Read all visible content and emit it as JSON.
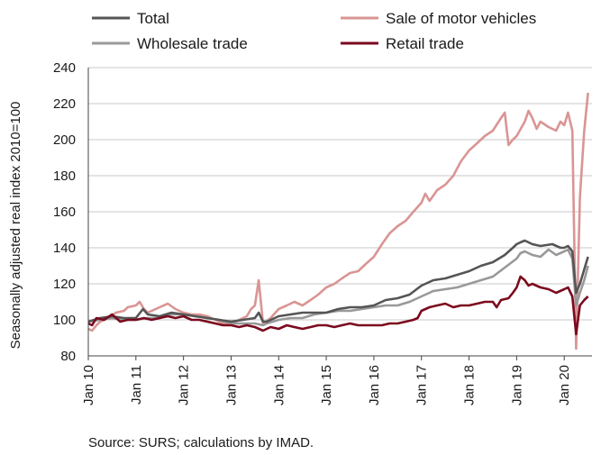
{
  "chart_data": {
    "type": "line",
    "ylabel": "Seasonally adjusted real index 2010=100",
    "ylim": [
      80,
      240
    ],
    "yticks": [
      80,
      100,
      120,
      140,
      160,
      180,
      200,
      220,
      240
    ],
    "xlim": [
      2010.0,
      2020.583
    ],
    "xticks": [
      {
        "label": "Jan 10",
        "year": 2010
      },
      {
        "label": "Jan 11",
        "year": 2011
      },
      {
        "label": "Jan 12",
        "year": 2012
      },
      {
        "label": "Jan 13",
        "year": 2013
      },
      {
        "label": "Jan 14",
        "year": 2014
      },
      {
        "label": "Jan 15",
        "year": 2015
      },
      {
        "label": "Jan 16",
        "year": 2016
      },
      {
        "label": "Jan 17",
        "year": 2017
      },
      {
        "label": "Jan 18",
        "year": 2018
      },
      {
        "label": "Jan 19",
        "year": 2019
      },
      {
        "label": "Jan 20",
        "year": 2020
      }
    ],
    "grid": true,
    "legend_position": "top",
    "series": [
      {
        "name": "Total",
        "color": "#555555",
        "points": [
          [
            2010.0,
            99
          ],
          [
            2010.25,
            101
          ],
          [
            2010.5,
            102
          ],
          [
            2010.75,
            101
          ],
          [
            2011.0,
            101
          ],
          [
            2011.15,
            106
          ],
          [
            2011.25,
            103
          ],
          [
            2011.5,
            102
          ],
          [
            2011.75,
            104
          ],
          [
            2012.0,
            103
          ],
          [
            2012.25,
            102
          ],
          [
            2012.5,
            101
          ],
          [
            2012.75,
            100
          ],
          [
            2013.0,
            99
          ],
          [
            2013.25,
            100
          ],
          [
            2013.5,
            101
          ],
          [
            2013.58,
            104
          ],
          [
            2013.67,
            99
          ],
          [
            2013.75,
            99
          ],
          [
            2014.0,
            102
          ],
          [
            2014.25,
            103
          ],
          [
            2014.5,
            104
          ],
          [
            2014.75,
            104
          ],
          [
            2015.0,
            104
          ],
          [
            2015.25,
            106
          ],
          [
            2015.5,
            107
          ],
          [
            2015.75,
            107
          ],
          [
            2016.0,
            108
          ],
          [
            2016.25,
            111
          ],
          [
            2016.5,
            112
          ],
          [
            2016.75,
            114
          ],
          [
            2017.0,
            119
          ],
          [
            2017.25,
            122
          ],
          [
            2017.5,
            123
          ],
          [
            2017.75,
            125
          ],
          [
            2018.0,
            127
          ],
          [
            2018.25,
            130
          ],
          [
            2018.5,
            132
          ],
          [
            2018.75,
            136
          ],
          [
            2018.92,
            140
          ],
          [
            2019.0,
            142
          ],
          [
            2019.08,
            143
          ],
          [
            2019.17,
            144
          ],
          [
            2019.33,
            142
          ],
          [
            2019.5,
            141
          ],
          [
            2019.75,
            142
          ],
          [
            2019.92,
            140
          ],
          [
            2020.0,
            140
          ],
          [
            2020.08,
            141
          ],
          [
            2020.17,
            138
          ],
          [
            2020.25,
            115
          ],
          [
            2020.33,
            120
          ],
          [
            2020.42,
            128
          ],
          [
            2020.5,
            135
          ]
        ]
      },
      {
        "name": "Sale of motor vehicles",
        "color": "#d99594",
        "points": [
          [
            2010.0,
            95
          ],
          [
            2010.08,
            94
          ],
          [
            2010.17,
            97
          ],
          [
            2010.25,
            99
          ],
          [
            2010.42,
            101
          ],
          [
            2010.58,
            104
          ],
          [
            2010.75,
            105
          ],
          [
            2010.83,
            107
          ],
          [
            2011.0,
            108
          ],
          [
            2011.08,
            110
          ],
          [
            2011.17,
            106
          ],
          [
            2011.25,
            104
          ],
          [
            2011.33,
            105
          ],
          [
            2011.5,
            107
          ],
          [
            2011.67,
            109
          ],
          [
            2011.83,
            106
          ],
          [
            2012.0,
            104
          ],
          [
            2012.17,
            103
          ],
          [
            2012.33,
            103
          ],
          [
            2012.5,
            102
          ],
          [
            2012.67,
            100
          ],
          [
            2012.83,
            98
          ],
          [
            2013.0,
            98
          ],
          [
            2013.17,
            100
          ],
          [
            2013.33,
            102
          ],
          [
            2013.42,
            106
          ],
          [
            2013.5,
            108
          ],
          [
            2013.58,
            122
          ],
          [
            2013.67,
            98
          ],
          [
            2013.83,
            101
          ],
          [
            2014.0,
            106
          ],
          [
            2014.17,
            108
          ],
          [
            2014.33,
            110
          ],
          [
            2014.5,
            108
          ],
          [
            2014.67,
            111
          ],
          [
            2014.83,
            114
          ],
          [
            2015.0,
            118
          ],
          [
            2015.17,
            120
          ],
          [
            2015.33,
            123
          ],
          [
            2015.5,
            126
          ],
          [
            2015.67,
            127
          ],
          [
            2015.83,
            131
          ],
          [
            2016.0,
            135
          ],
          [
            2016.17,
            142
          ],
          [
            2016.33,
            148
          ],
          [
            2016.5,
            152
          ],
          [
            2016.67,
            155
          ],
          [
            2016.83,
            160
          ],
          [
            2017.0,
            165
          ],
          [
            2017.08,
            170
          ],
          [
            2017.17,
            166
          ],
          [
            2017.33,
            172
          ],
          [
            2017.5,
            175
          ],
          [
            2017.67,
            180
          ],
          [
            2017.83,
            188
          ],
          [
            2018.0,
            194
          ],
          [
            2018.17,
            198
          ],
          [
            2018.33,
            202
          ],
          [
            2018.5,
            205
          ],
          [
            2018.67,
            212
          ],
          [
            2018.75,
            215
          ],
          [
            2018.83,
            197
          ],
          [
            2018.92,
            200
          ],
          [
            2019.0,
            202
          ],
          [
            2019.17,
            210
          ],
          [
            2019.25,
            216
          ],
          [
            2019.33,
            212
          ],
          [
            2019.42,
            206
          ],
          [
            2019.5,
            210
          ],
          [
            2019.67,
            207
          ],
          [
            2019.83,
            205
          ],
          [
            2019.92,
            210
          ],
          [
            2020.0,
            208
          ],
          [
            2020.08,
            215
          ],
          [
            2020.17,
            205
          ],
          [
            2020.25,
            84
          ],
          [
            2020.33,
            168
          ],
          [
            2020.42,
            205
          ],
          [
            2020.5,
            226
          ]
        ]
      },
      {
        "name": "Wholesale trade",
        "color": "#999999",
        "points": [
          [
            2010.0,
            99
          ],
          [
            2010.25,
            100
          ],
          [
            2010.5,
            101
          ],
          [
            2010.75,
            100
          ],
          [
            2011.0,
            100
          ],
          [
            2011.25,
            101
          ],
          [
            2011.5,
            101
          ],
          [
            2011.75,
            103
          ],
          [
            2012.0,
            103
          ],
          [
            2012.25,
            102
          ],
          [
            2012.5,
            101
          ],
          [
            2012.75,
            100
          ],
          [
            2013.0,
            98
          ],
          [
            2013.25,
            98
          ],
          [
            2013.5,
            98
          ],
          [
            2013.67,
            97
          ],
          [
            2013.75,
            98
          ],
          [
            2014.0,
            100
          ],
          [
            2014.25,
            101
          ],
          [
            2014.5,
            101
          ],
          [
            2014.75,
            103
          ],
          [
            2015.0,
            104
          ],
          [
            2015.25,
            105
          ],
          [
            2015.5,
            105
          ],
          [
            2015.75,
            106
          ],
          [
            2016.0,
            107
          ],
          [
            2016.25,
            108
          ],
          [
            2016.5,
            108
          ],
          [
            2016.75,
            110
          ],
          [
            2017.0,
            113
          ],
          [
            2017.25,
            116
          ],
          [
            2017.5,
            117
          ],
          [
            2017.75,
            118
          ],
          [
            2018.0,
            120
          ],
          [
            2018.25,
            122
          ],
          [
            2018.5,
            124
          ],
          [
            2018.75,
            129
          ],
          [
            2019.0,
            134
          ],
          [
            2019.08,
            137
          ],
          [
            2019.17,
            138
          ],
          [
            2019.33,
            136
          ],
          [
            2019.5,
            135
          ],
          [
            2019.67,
            139
          ],
          [
            2019.83,
            136
          ],
          [
            2020.0,
            138
          ],
          [
            2020.08,
            139
          ],
          [
            2020.17,
            134
          ],
          [
            2020.25,
            108
          ],
          [
            2020.33,
            115
          ],
          [
            2020.42,
            122
          ],
          [
            2020.5,
            130
          ]
        ]
      },
      {
        "name": "Retail trade",
        "color": "#7b0a1e",
        "points": [
          [
            2010.0,
            98
          ],
          [
            2010.08,
            97
          ],
          [
            2010.17,
            101
          ],
          [
            2010.33,
            100
          ],
          [
            2010.5,
            103
          ],
          [
            2010.67,
            99
          ],
          [
            2010.83,
            100
          ],
          [
            2011.0,
            100
          ],
          [
            2011.17,
            101
          ],
          [
            2011.33,
            100
          ],
          [
            2011.5,
            101
          ],
          [
            2011.67,
            102
          ],
          [
            2011.83,
            101
          ],
          [
            2012.0,
            102
          ],
          [
            2012.17,
            100
          ],
          [
            2012.33,
            100
          ],
          [
            2012.5,
            99
          ],
          [
            2012.67,
            98
          ],
          [
            2012.83,
            97
          ],
          [
            2013.0,
            97
          ],
          [
            2013.17,
            96
          ],
          [
            2013.33,
            97
          ],
          [
            2013.5,
            96
          ],
          [
            2013.67,
            94
          ],
          [
            2013.83,
            96
          ],
          [
            2014.0,
            95
          ],
          [
            2014.17,
            97
          ],
          [
            2014.33,
            96
          ],
          [
            2014.5,
            95
          ],
          [
            2014.67,
            96
          ],
          [
            2014.83,
            97
          ],
          [
            2015.0,
            97
          ],
          [
            2015.17,
            96
          ],
          [
            2015.33,
            97
          ],
          [
            2015.5,
            98
          ],
          [
            2015.67,
            97
          ],
          [
            2015.83,
            97
          ],
          [
            2016.0,
            97
          ],
          [
            2016.17,
            97
          ],
          [
            2016.33,
            98
          ],
          [
            2016.5,
            98
          ],
          [
            2016.67,
            99
          ],
          [
            2016.83,
            100
          ],
          [
            2016.92,
            101
          ],
          [
            2017.0,
            105
          ],
          [
            2017.17,
            107
          ],
          [
            2017.33,
            108
          ],
          [
            2017.5,
            109
          ],
          [
            2017.67,
            107
          ],
          [
            2017.83,
            108
          ],
          [
            2018.0,
            108
          ],
          [
            2018.17,
            109
          ],
          [
            2018.33,
            110
          ],
          [
            2018.5,
            110
          ],
          [
            2018.58,
            107
          ],
          [
            2018.67,
            111
          ],
          [
            2018.83,
            112
          ],
          [
            2018.92,
            115
          ],
          [
            2019.0,
            118
          ],
          [
            2019.08,
            124
          ],
          [
            2019.17,
            122
          ],
          [
            2019.25,
            119
          ],
          [
            2019.33,
            120
          ],
          [
            2019.5,
            118
          ],
          [
            2019.67,
            117
          ],
          [
            2019.83,
            115
          ],
          [
            2020.0,
            117
          ],
          [
            2020.08,
            118
          ],
          [
            2020.17,
            113
          ],
          [
            2020.25,
            92
          ],
          [
            2020.33,
            108
          ],
          [
            2020.42,
            111
          ],
          [
            2020.5,
            113
          ]
        ]
      }
    ],
    "legend": [
      {
        "name": "Total",
        "color": "#555555"
      },
      {
        "name": "Sale of motor vehicles",
        "color": "#d99594"
      },
      {
        "name": "Wholesale trade",
        "color": "#999999"
      },
      {
        "name": "Retail trade",
        "color": "#7b0a1e"
      }
    ]
  },
  "source": "Source: SURS; calculations by IMAD."
}
